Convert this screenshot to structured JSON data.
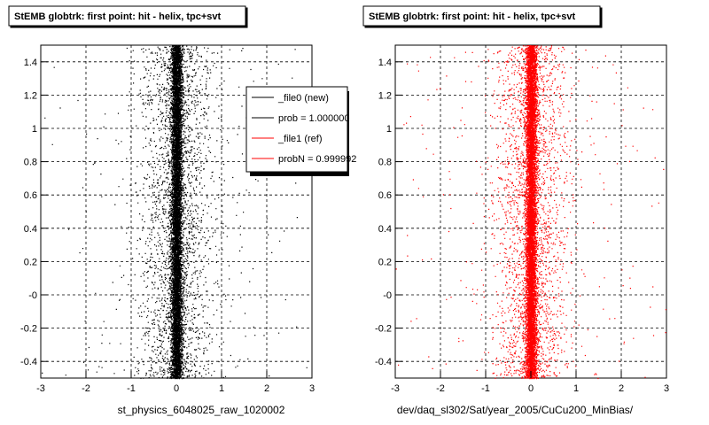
{
  "chart_data": [
    {
      "type": "scatter",
      "title": "StEMB globtrk: first point: hit - helix, tpc+svt",
      "xlabel": "st_physics_6048025_raw_1020002",
      "ylabel": "",
      "xlim": [
        -3,
        3
      ],
      "ylim": [
        -0.5,
        1.5
      ],
      "x_ticks": [
        "-3",
        "-2",
        "-1",
        "0",
        "1",
        "2",
        "3"
      ],
      "y_ticks": [
        "-0.4",
        "-0.2",
        "-0",
        "0.2",
        "0.4",
        "0.6",
        "0.8",
        "1",
        "1.2",
        "1.4"
      ],
      "grid": true,
      "series": [
        {
          "name": "_file0 (new)",
          "color": "#000000",
          "x_center": 0,
          "core_width": 0.12,
          "spread_width": 1.5,
          "outliers": 3.0
        }
      ],
      "legend": {
        "position": "top-right",
        "entries": [
          {
            "label": "_file0 (new)",
            "color": "#000000"
          },
          {
            "label": "prob = 1.000000",
            "color": "#000000"
          },
          {
            "label": "_file1 (ref)",
            "color": "#ff0000"
          },
          {
            "label": "probN = 0.999992",
            "color": "#ff0000"
          }
        ]
      }
    },
    {
      "type": "scatter",
      "title": "StEMB globtrk: first point: hit - helix, tpc+svt",
      "xlabel": "dev/daq_sl302/Sat/year_2005/CuCu200_MinBias/",
      "ylabel": "",
      "xlim": [
        -3,
        3
      ],
      "ylim": [
        -0.5,
        1.5
      ],
      "x_ticks": [
        "-3",
        "-2",
        "-1",
        "0",
        "1",
        "2",
        "3"
      ],
      "y_ticks": [
        "-0.4",
        "-0.2",
        "-0",
        "0.2",
        "0.4",
        "0.6",
        "0.8",
        "1",
        "1.2",
        "1.4"
      ],
      "grid": true,
      "series": [
        {
          "name": "_file1 (ref)",
          "color": "#ff0000",
          "x_center": 0,
          "core_width": 0.12,
          "spread_width": 1.5,
          "outliers": 3.0
        }
      ]
    }
  ]
}
